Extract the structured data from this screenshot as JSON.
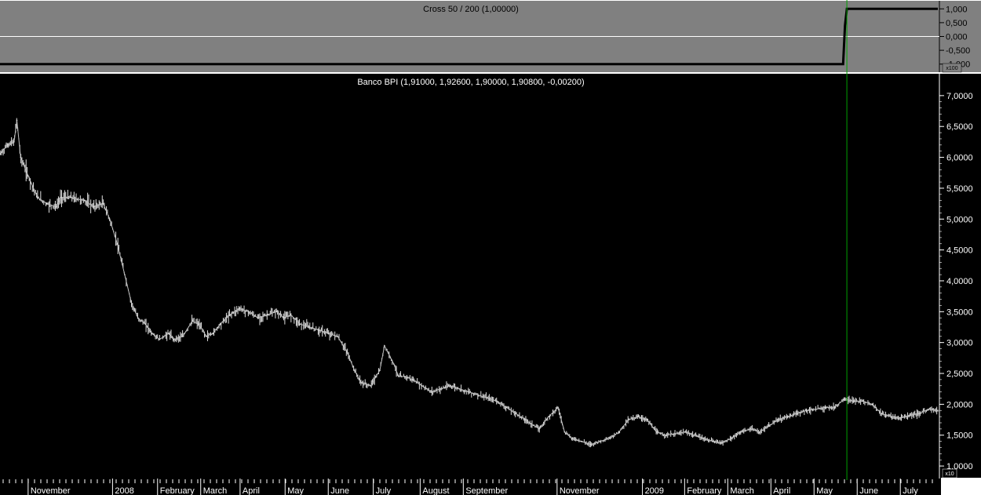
{
  "chart_data": [
    {
      "type": "line",
      "title": "Cross 50 / 200 (1,00000)",
      "y_ticks": [
        "1,000",
        "0,500",
        "0,000",
        "-0,500",
        "-1,000"
      ],
      "y_tick_values": [
        1,
        0.5,
        0,
        -0.5,
        -1
      ],
      "scale_badge": "x100",
      "ylim": [
        -1.15,
        1.15
      ],
      "x_range": [
        0,
        1
      ],
      "series": [
        {
          "x": [
            0,
            0.899,
            0.901,
            0.903,
            1.0
          ],
          "values": [
            -1,
            -1,
            0.4,
            1,
            1
          ]
        }
      ],
      "zero_line": true,
      "colors": {
        "background": "#808080",
        "series": "#000000",
        "zero_line": "#ffffff"
      }
    },
    {
      "type": "line",
      "title": "Banco BPI (1,91000, 1,92600, 1,90000, 1,90800, -0,00200)",
      "y_ticks": [
        "7,0000",
        "6,5000",
        "6,0000",
        "5,5000",
        "5,0000",
        "4,5000",
        "4,0000",
        "3,5000",
        "3,0000",
        "2,5000",
        "2,0000",
        "1,5000",
        "1,0000"
      ],
      "y_tick_values": [
        7.0,
        6.5,
        6.0,
        5.5,
        5.0,
        4.5,
        4.0,
        3.5,
        3.0,
        2.5,
        2.0,
        1.5,
        1.0
      ],
      "scale_badge": "x10",
      "ylim": [
        0.95,
        7.1
      ],
      "x_range": [
        0,
        1
      ],
      "x_labels": [
        {
          "x": 0.03,
          "label": "November"
        },
        {
          "x": 0.12,
          "label": "2008"
        },
        {
          "x": 0.168,
          "label": "February"
        },
        {
          "x": 0.214,
          "label": "March"
        },
        {
          "x": 0.256,
          "label": "April"
        },
        {
          "x": 0.304,
          "label": "May"
        },
        {
          "x": 0.35,
          "label": "June"
        },
        {
          "x": 0.398,
          "label": "July"
        },
        {
          "x": 0.448,
          "label": "August"
        },
        {
          "x": 0.494,
          "label": "September"
        },
        {
          "x": 0.594,
          "label": "November"
        },
        {
          "x": 0.685,
          "label": "2009"
        },
        {
          "x": 0.73,
          "label": "February"
        },
        {
          "x": 0.776,
          "label": "March"
        },
        {
          "x": 0.822,
          "label": "April"
        },
        {
          "x": 0.868,
          "label": "May"
        },
        {
          "x": 0.914,
          "label": "June"
        },
        {
          "x": 0.96,
          "label": "July"
        }
      ],
      "series": [
        {
          "x": [
            0.0,
            0.008,
            0.015,
            0.018,
            0.022,
            0.03,
            0.04,
            0.05,
            0.06,
            0.065,
            0.075,
            0.09,
            0.1,
            0.11,
            0.117,
            0.125,
            0.133,
            0.14,
            0.147,
            0.155,
            0.162,
            0.17,
            0.18,
            0.185,
            0.195,
            0.205,
            0.212,
            0.22,
            0.227,
            0.235,
            0.245,
            0.255,
            0.265,
            0.275,
            0.285,
            0.295,
            0.303,
            0.31,
            0.32,
            0.33,
            0.34,
            0.35,
            0.36,
            0.37,
            0.378,
            0.385,
            0.395,
            0.405,
            0.41,
            0.42,
            0.425,
            0.432,
            0.44,
            0.45,
            0.46,
            0.47,
            0.48,
            0.49,
            0.5,
            0.51,
            0.52,
            0.53,
            0.54,
            0.55,
            0.56,
            0.575,
            0.585,
            0.595,
            0.602,
            0.61,
            0.62,
            0.63,
            0.64,
            0.65,
            0.66,
            0.67,
            0.68,
            0.69,
            0.7,
            0.71,
            0.72,
            0.73,
            0.74,
            0.75,
            0.76,
            0.77,
            0.78,
            0.79,
            0.8,
            0.81,
            0.82,
            0.83,
            0.84,
            0.85,
            0.86,
            0.87,
            0.88,
            0.89,
            0.9,
            0.91,
            0.92,
            0.93,
            0.94,
            0.95,
            0.96,
            0.97,
            0.98,
            0.99,
            1.0
          ],
          "values": [
            6.05,
            6.2,
            6.25,
            6.6,
            6.0,
            5.7,
            5.35,
            5.25,
            5.2,
            5.35,
            5.35,
            5.3,
            5.2,
            5.25,
            5.0,
            4.6,
            4.1,
            3.65,
            3.4,
            3.3,
            3.15,
            3.05,
            3.15,
            3.05,
            3.1,
            3.35,
            3.3,
            3.1,
            3.15,
            3.3,
            3.45,
            3.55,
            3.5,
            3.4,
            3.45,
            3.5,
            3.4,
            3.45,
            3.3,
            3.25,
            3.2,
            3.15,
            3.1,
            2.85,
            2.55,
            2.35,
            2.3,
            2.55,
            2.95,
            2.65,
            2.45,
            2.45,
            2.4,
            2.3,
            2.2,
            2.25,
            2.3,
            2.25,
            2.2,
            2.15,
            2.1,
            2.05,
            1.95,
            1.85,
            1.75,
            1.6,
            1.8,
            1.95,
            1.55,
            1.45,
            1.4,
            1.35,
            1.4,
            1.45,
            1.55,
            1.75,
            1.8,
            1.75,
            1.55,
            1.5,
            1.52,
            1.55,
            1.5,
            1.45,
            1.4,
            1.38,
            1.45,
            1.55,
            1.6,
            1.55,
            1.65,
            1.75,
            1.8,
            1.85,
            1.9,
            1.92,
            1.95,
            1.95,
            2.08,
            2.05,
            2.05,
            2.0,
            1.85,
            1.8,
            1.78,
            1.82,
            1.85,
            1.92,
            1.9
          ]
        }
      ],
      "colors": {
        "background": "#000000",
        "series": "#e0e0e0",
        "axis_text": "#ffffff",
        "marker_line": "#00a000"
      }
    }
  ],
  "marker_line_x": 0.903
}
